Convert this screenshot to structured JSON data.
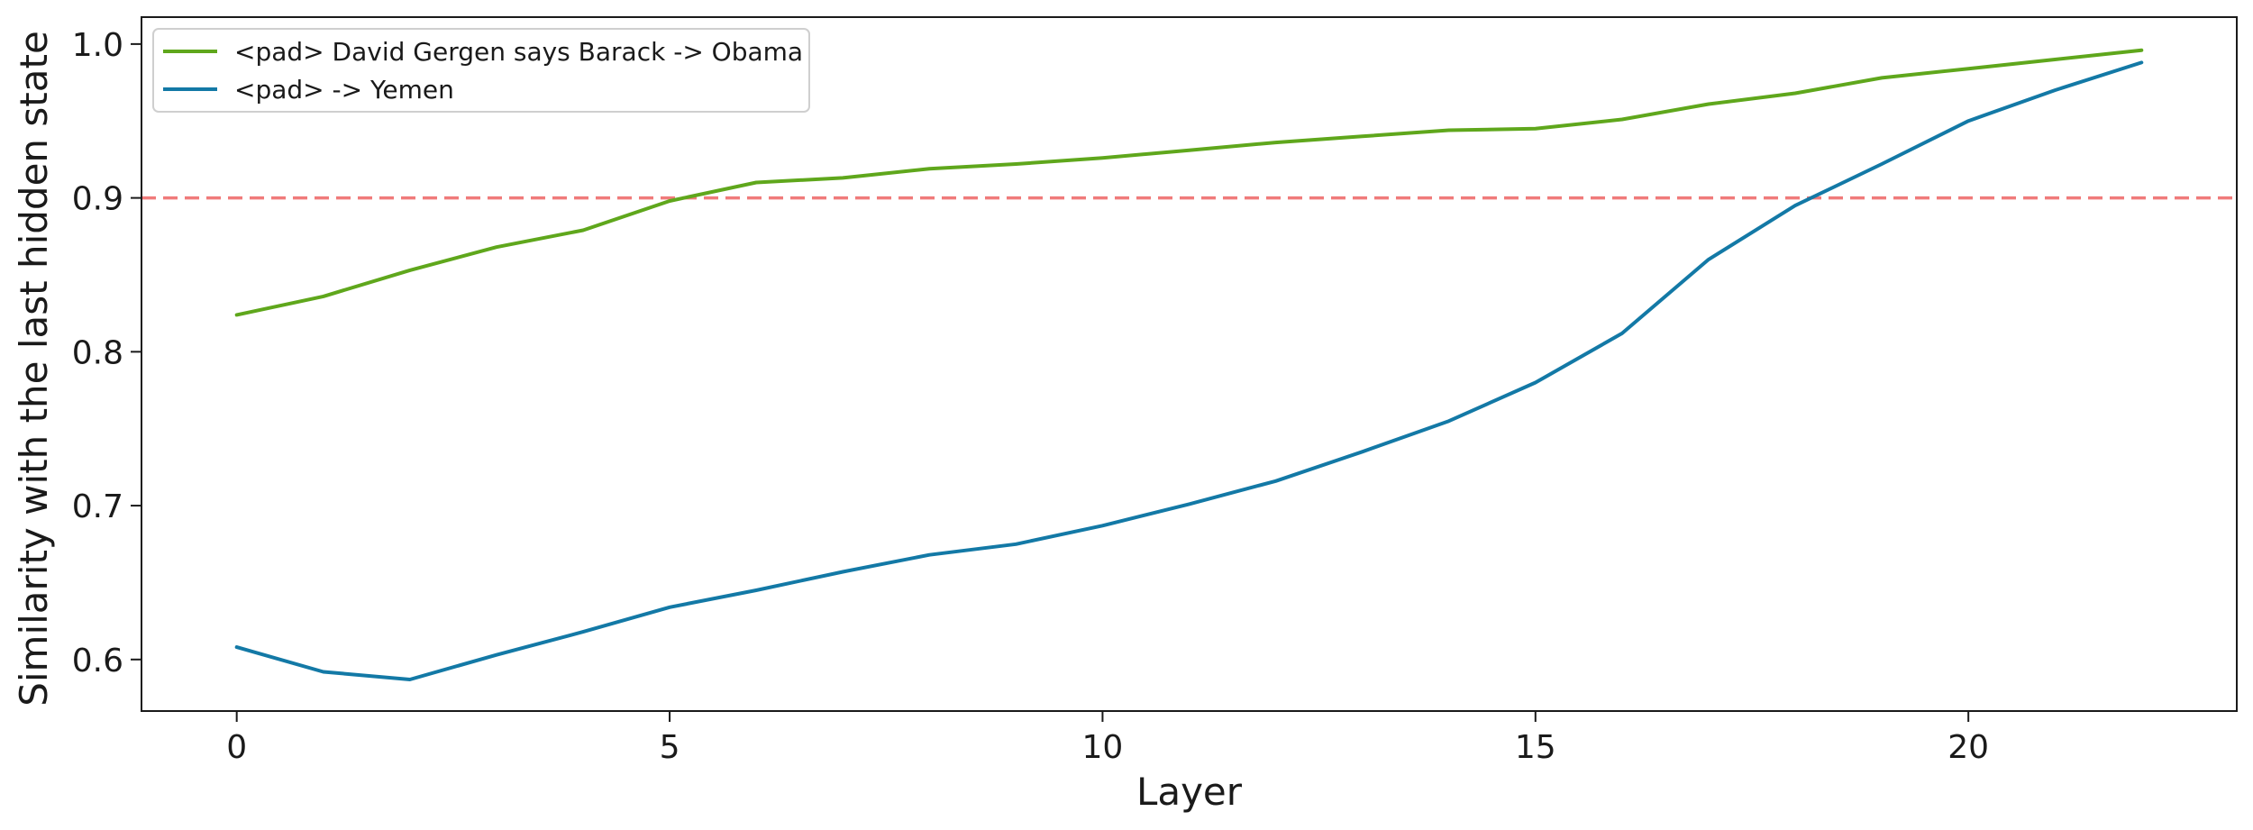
{
  "chart_data": {
    "type": "line",
    "title": "",
    "xlabel": "Layer",
    "ylabel": "Similarity with the last hidden state",
    "xlim": [
      -1.1,
      23.1
    ],
    "ylim": [
      0.5665,
      1.0175
    ],
    "xticks": [
      0,
      5,
      10,
      15,
      20
    ],
    "yticks": [
      0.6,
      0.7,
      0.8,
      0.9,
      1.0
    ],
    "ytick_labels": [
      "0.6",
      "0.7",
      "0.8",
      "0.9",
      "1.0"
    ],
    "grid": false,
    "legend_position": "top-left",
    "threshold": {
      "y": 0.9,
      "color": "#f07b7b",
      "style": "dashed"
    },
    "x": [
      0,
      1,
      2,
      3,
      4,
      5,
      6,
      7,
      8,
      9,
      10,
      11,
      12,
      13,
      14,
      15,
      16,
      17,
      18,
      19,
      20,
      21,
      22
    ],
    "series": [
      {
        "name": "<pad> David Gergen says Barack -> Obama",
        "color": "#5fa71c",
        "values": [
          0.824,
          0.836,
          0.853,
          0.868,
          0.879,
          0.898,
          0.91,
          0.913,
          0.919,
          0.922,
          0.926,
          0.931,
          0.936,
          0.94,
          0.944,
          0.945,
          0.951,
          0.961,
          0.968,
          0.978,
          0.984,
          0.99,
          0.996
        ]
      },
      {
        "name": "<pad> -> Yemen",
        "color": "#1379a6",
        "values": [
          0.608,
          0.592,
          0.587,
          0.603,
          0.618,
          0.634,
          0.645,
          0.657,
          0.668,
          0.675,
          0.687,
          0.701,
          0.716,
          0.735,
          0.755,
          0.78,
          0.812,
          0.86,
          0.895,
          0.922,
          0.95,
          0.97,
          0.988
        ]
      }
    ]
  }
}
